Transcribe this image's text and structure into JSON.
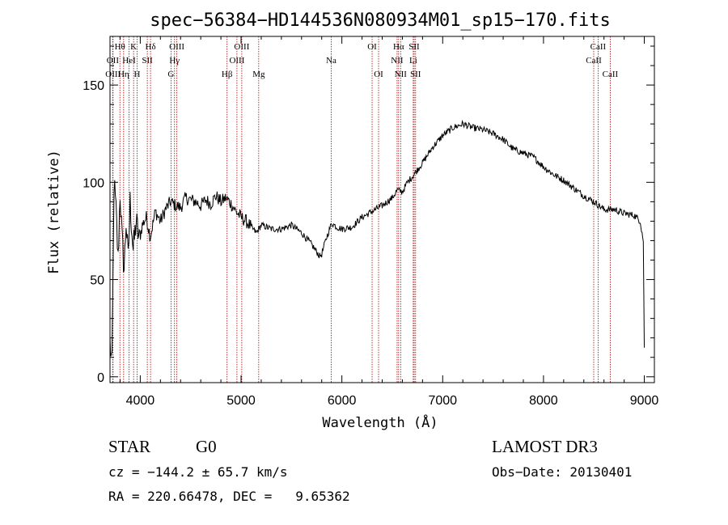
{
  "chart_data": {
    "type": "line",
    "title": "spec−56384−HD144536N080934M01_sp15−170.fits",
    "xlabel": "Wavelength (Å)",
    "ylabel": "Flux (relative)",
    "xlim": [
      3700,
      9100
    ],
    "ylim": [
      -3,
      175
    ],
    "xticks": [
      4000,
      5000,
      6000,
      7000,
      8000,
      9000
    ],
    "yticks": [
      0,
      50,
      100,
      150
    ],
    "series": [
      {
        "name": "spectrum",
        "x": [
          3700,
          3720,
          3740,
          3760,
          3780,
          3800,
          3820,
          3840,
          3860,
          3880,
          3900,
          3930,
          3960,
          3990,
          4020,
          4060,
          4100,
          4150,
          4200,
          4250,
          4300,
          4350,
          4400,
          4450,
          4500,
          4550,
          4600,
          4650,
          4700,
          4750,
          4800,
          4850,
          4900,
          4950,
          5000,
          5050,
          5100,
          5150,
          5200,
          5300,
          5400,
          5500,
          5600,
          5700,
          5780,
          5800,
          5850,
          5900,
          5950,
          6000,
          6100,
          6200,
          6300,
          6400,
          6500,
          6550,
          6600,
          6650,
          6700,
          6800,
          6900,
          7000,
          7100,
          7200,
          7300,
          7400,
          7500,
          7600,
          7700,
          7800,
          7900,
          8000,
          8100,
          8200,
          8300,
          8400,
          8500,
          8600,
          8700,
          8800,
          8900,
          8960,
          8990,
          9000
        ],
        "y": [
          18,
          5,
          100,
          85,
          60,
          95,
          70,
          55,
          80,
          60,
          90,
          65,
          80,
          70,
          78,
          82,
          72,
          85,
          80,
          86,
          90,
          88,
          87,
          92,
          91,
          90,
          88,
          91,
          89,
          93,
          90,
          92,
          89,
          85,
          82,
          80,
          77,
          74,
          78,
          76,
          76,
          78,
          74,
          68,
          62,
          63,
          72,
          79,
          77,
          76,
          77,
          82,
          85,
          88,
          92,
          96,
          95,
          100,
          103,
          110,
          118,
          124,
          128,
          130,
          128,
          127,
          125,
          122,
          117,
          115,
          113,
          108,
          104,
          101,
          97,
          93,
          90,
          86,
          86,
          84,
          83,
          80,
          70,
          15
        ]
      }
    ],
    "lines": [
      {
        "name": "Hθ",
        "wl": 3798,
        "row": 1
      },
      {
        "name": "OII",
        "wl": 3727,
        "row": 2
      },
      {
        "name": "OIII",
        "wl": 3730,
        "row": 3
      },
      {
        "name": "K",
        "wl": 3934,
        "row": 1
      },
      {
        "name": "HeI",
        "wl": 3889,
        "row": 2
      },
      {
        "name": "Hη",
        "wl": 3835,
        "row": 3
      },
      {
        "name": "Hδ",
        "wl": 4102,
        "row": 1
      },
      {
        "name": "SII",
        "wl": 4070,
        "row": 2
      },
      {
        "name": "H",
        "wl": 3969,
        "row": 3
      },
      {
        "name": "OIII",
        "wl": 4363,
        "row": 1
      },
      {
        "name": "Hγ",
        "wl": 4340,
        "row": 2
      },
      {
        "name": "G",
        "wl": 4305,
        "row": 3
      },
      {
        "name": "OIII",
        "wl": 5007,
        "row": 1
      },
      {
        "name": "OIII",
        "wl": 4959,
        "row": 2
      },
      {
        "name": "Hβ",
        "wl": 4861,
        "row": 3
      },
      {
        "name": "Mg",
        "wl": 5175,
        "row": 3
      },
      {
        "name": "Na",
        "wl": 5894,
        "row": 2
      },
      {
        "name": "OI",
        "wl": 6300,
        "row": 1
      },
      {
        "name": "OI",
        "wl": 6364,
        "row": 3
      },
      {
        "name": "Hα",
        "wl": 6563,
        "row": 1
      },
      {
        "name": "NII",
        "wl": 6548,
        "row": 2
      },
      {
        "name": "NII",
        "wl": 6583,
        "row": 3
      },
      {
        "name": "SII",
        "wl": 6717,
        "row": 1
      },
      {
        "name": "Li",
        "wl": 6708,
        "row": 2
      },
      {
        "name": "SII",
        "wl": 6731,
        "row": 3
      },
      {
        "name": "CaII",
        "wl": 8542,
        "row": 1
      },
      {
        "name": "CaII",
        "wl": 8498,
        "row": 2
      },
      {
        "name": "CaII",
        "wl": 8662,
        "row": 3
      }
    ],
    "colors": {
      "line": "#000000",
      "marker": "#aa0000"
    }
  },
  "info": {
    "object_class": "STAR",
    "subclass": "G0",
    "survey": "LAMOST DR3",
    "redshift": "cz = −144.2 ± 65.7 km/s",
    "obs_date": "Obs−Date: 20130401",
    "coords": "RA = 220.66478, DEC =   9.65362"
  }
}
